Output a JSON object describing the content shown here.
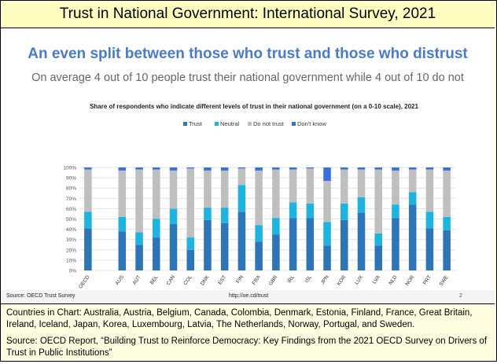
{
  "header": {
    "title": "Trust in National Government: International Survey, 2021"
  },
  "slide": {
    "headline": "An even split between those who trust and those who distrust",
    "subhead": "On average 4 out of 10 people trust their national government while 4 out of 10 do not",
    "footer_source": "Source: OECD Trust Survey",
    "footer_url": "http://oe.cd/trust",
    "footer_page": "2"
  },
  "notes": {
    "countries": "Countries in Chart: Australia, Austria, Belgium, Canada, Colombia, Denmark, Estonia, Finland, France, Great Britain, Ireland, Iceland, Japan, Korea, Luxembourg, Latvia, The Netherlands, Norway, Portugal, and Sweden.",
    "source": "Source: OECD Report, “Building Trust to Reinforce Democracy: Key Findings from the 2021 OECD Survey on Drivers of Trust in Public Institutions”"
  },
  "colors": {
    "trust": "#2e75b6",
    "neutral": "#1fb3e0",
    "distrust": "#bfbfbf",
    "dontknow": "#3a6fe0"
  },
  "chart_data": {
    "type": "bar",
    "stacked": true,
    "title": "Share of respondents who indicate different levels of trust in their national government (on a 0-10 scale), 2021",
    "ylim": [
      0,
      100
    ],
    "yticks": [
      "0%",
      "10%",
      "20%",
      "30%",
      "40%",
      "50%",
      "60%",
      "70%",
      "80%",
      "90%",
      "100%"
    ],
    "grid": true,
    "legend_position": "top",
    "categories": [
      "OECD",
      "AUS",
      "AUT",
      "BEL",
      "CAN",
      "COL",
      "DNK",
      "EST",
      "FIN",
      "FRA",
      "GBR",
      "IRL",
      "ISL",
      "JPN",
      "KOR",
      "LUX",
      "LVA",
      "NLD",
      "NOR",
      "PRT",
      "SWE"
    ],
    "gap_after_index": 0,
    "series": [
      {
        "name": "Trust",
        "values": [
          41,
          38,
          25,
          32,
          45,
          20,
          49,
          46,
          57,
          28,
          35,
          51,
          51,
          24,
          49,
          56,
          24,
          51,
          64,
          41,
          39
        ]
      },
      {
        "name": "Neutral",
        "values": [
          16,
          14,
          12,
          18,
          15,
          12,
          12,
          15,
          26,
          16,
          16,
          15,
          14,
          23,
          16,
          15,
          12,
          13,
          12,
          16,
          13
        ]
      },
      {
        "name": "Do not trust",
        "values": [
          41,
          45,
          61,
          48,
          37,
          67,
          36,
          36,
          16,
          53,
          47,
          32,
          34,
          40,
          33,
          27,
          62,
          33,
          22,
          41,
          45
        ]
      },
      {
        "name": "Don't know",
        "values": [
          2,
          3,
          2,
          2,
          3,
          1,
          3,
          3,
          1,
          3,
          2,
          2,
          1,
          13,
          2,
          2,
          2,
          3,
          2,
          2,
          3
        ]
      }
    ]
  }
}
